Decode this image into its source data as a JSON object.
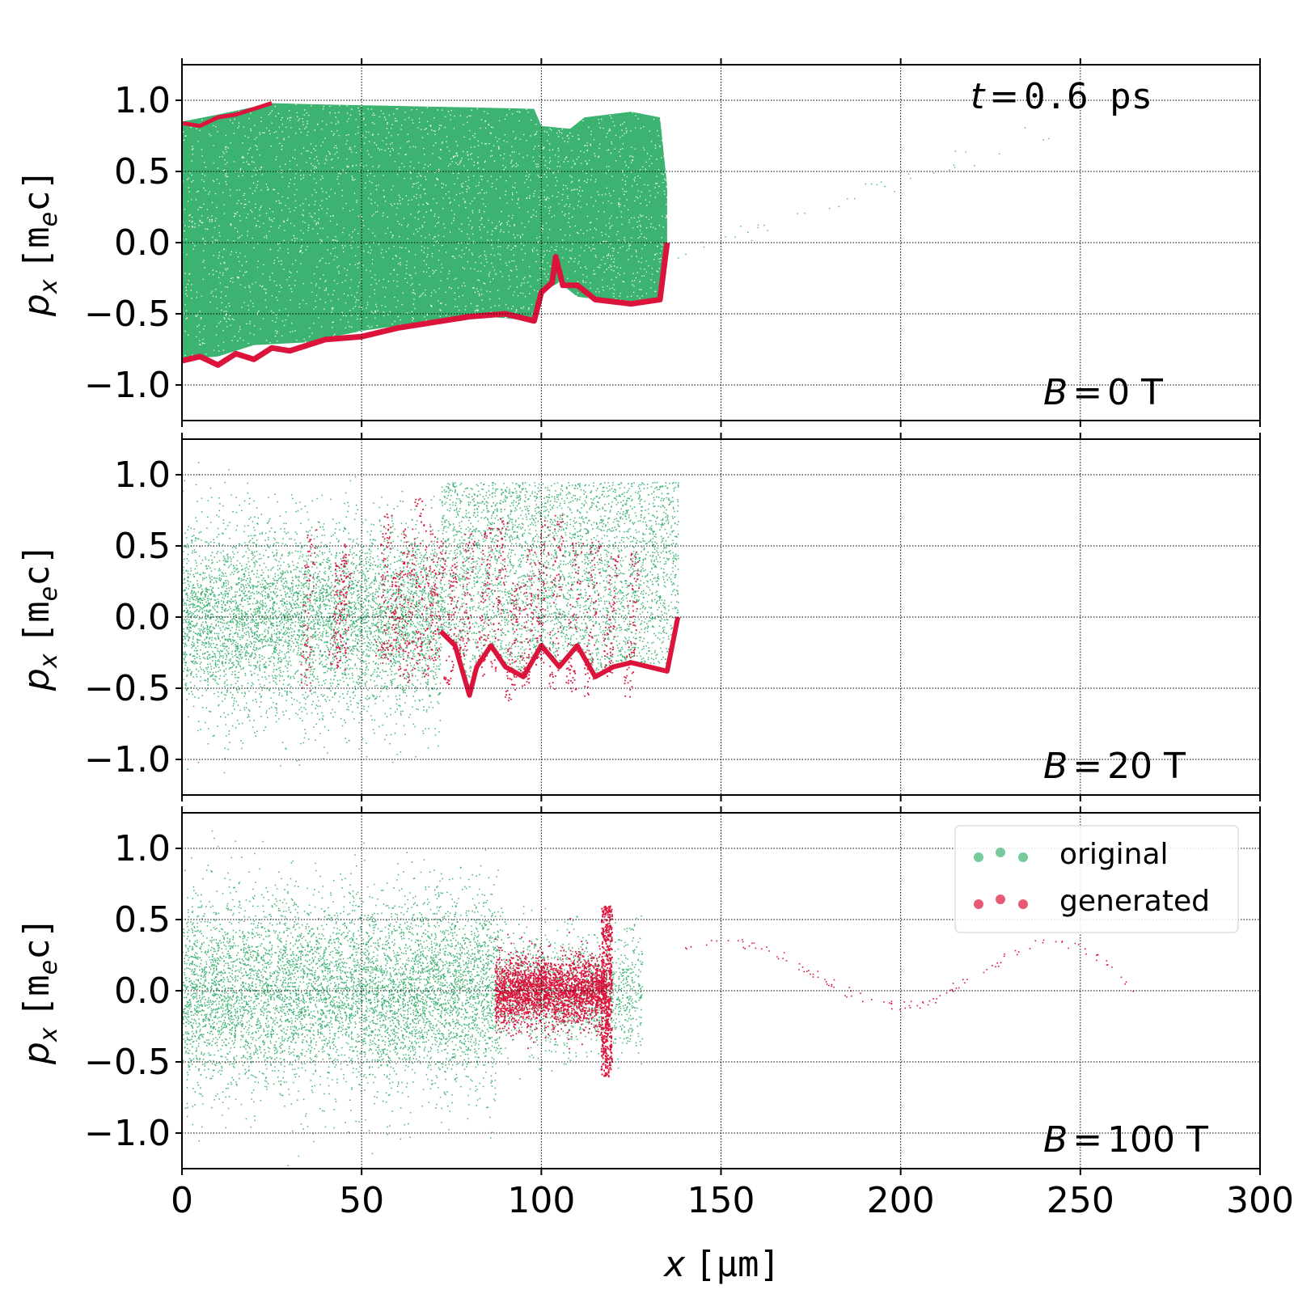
{
  "colors": {
    "original": "#3cb371",
    "generated": "#dc143c",
    "grid": "#000000",
    "frame": "#000000"
  },
  "chart_data": [
    {
      "type": "scatter",
      "panel": "top",
      "annotation_time": "t = 0.6 ps",
      "annotation_field": "B = 0 T",
      "xlim": [
        0,
        300
      ],
      "ylim": [
        -1.25,
        1.25
      ],
      "yticks": [
        1.0,
        0.5,
        0.0,
        -0.5,
        -1.0
      ],
      "ylabel": "p_x [m_e c]",
      "series": [
        {
          "name": "original",
          "description_band": "dense distribution",
          "upper": [
            [
              0,
              0.85
            ],
            [
              10,
              0.9
            ],
            [
              25,
              0.98
            ],
            [
              40,
              0.97
            ],
            [
              60,
              0.96
            ],
            [
              80,
              0.95
            ],
            [
              98,
              0.94
            ],
            [
              100,
              0.82
            ],
            [
              108,
              0.8
            ],
            [
              112,
              0.88
            ],
            [
              125,
              0.92
            ],
            [
              133,
              0.88
            ],
            [
              135,
              0.4
            ]
          ],
          "lower": [
            [
              0,
              -0.82
            ],
            [
              10,
              -0.8
            ],
            [
              20,
              -0.72
            ],
            [
              35,
              -0.7
            ],
            [
              50,
              -0.62
            ],
            [
              70,
              -0.55
            ],
            [
              85,
              -0.52
            ],
            [
              98,
              -0.55
            ],
            [
              100,
              -0.35
            ],
            [
              105,
              -0.28
            ],
            [
              110,
              -0.38
            ],
            [
              125,
              -0.43
            ],
            [
              133,
              -0.4
            ],
            [
              135,
              0.0
            ]
          ]
        },
        {
          "name": "generated",
          "edge_upper": [
            [
              0,
              0.84
            ],
            [
              5,
              0.82
            ],
            [
              10,
              0.88
            ],
            [
              15,
              0.9
            ],
            [
              20,
              0.94
            ],
            [
              25,
              0.98
            ]
          ],
          "edge_lower": [
            [
              0,
              -0.83
            ],
            [
              5,
              -0.8
            ],
            [
              10,
              -0.86
            ],
            [
              15,
              -0.78
            ],
            [
              20,
              -0.82
            ],
            [
              25,
              -0.74
            ],
            [
              30,
              -0.76
            ],
            [
              40,
              -0.68
            ],
            [
              50,
              -0.66
            ],
            [
              60,
              -0.6
            ],
            [
              70,
              -0.56
            ],
            [
              80,
              -0.52
            ],
            [
              90,
              -0.5
            ],
            [
              98,
              -0.55
            ],
            [
              100,
              -0.35
            ],
            [
              103,
              -0.28
            ],
            [
              104,
              -0.1
            ],
            [
              106,
              -0.3
            ],
            [
              110,
              -0.3
            ],
            [
              115,
              -0.4
            ],
            [
              125,
              -0.43
            ],
            [
              133,
              -0.4
            ],
            [
              135,
              0.0
            ]
          ]
        }
      ]
    },
    {
      "type": "scatter",
      "panel": "middle",
      "annotation_field": "B = 20 T",
      "xlim": [
        0,
        300
      ],
      "ylim": [
        -1.25,
        1.25
      ],
      "yticks": [
        1.0,
        0.5,
        0.0,
        -0.5,
        -1.0
      ],
      "ylabel": "p_x [m_e c]",
      "series": [
        {
          "name": "original",
          "clouds": [
            {
              "x": [
                0,
                72
              ],
              "y_center": 0.0,
              "spread": 0.55,
              "density": 5200
            },
            {
              "x": [
                72,
                138
              ],
              "y_center": 0.3,
              "spread": 0.45,
              "density": 3600
            }
          ]
        },
        {
          "name": "generated",
          "edge_lower": [
            [
              72,
              -0.1
            ],
            [
              76,
              -0.2
            ],
            [
              80,
              -0.55
            ],
            [
              82,
              -0.35
            ],
            [
              86,
              -0.2
            ],
            [
              90,
              -0.35
            ],
            [
              95,
              -0.42
            ],
            [
              100,
              -0.2
            ],
            [
              105,
              -0.35
            ],
            [
              110,
              -0.2
            ],
            [
              115,
              -0.42
            ],
            [
              120,
              -0.35
            ],
            [
              125,
              -0.32
            ],
            [
              130,
              -0.35
            ],
            [
              135,
              -0.38
            ],
            [
              138,
              0.0
            ]
          ],
          "streaks_x": [
            34,
            42,
            44,
            55,
            58,
            61,
            64,
            67,
            70,
            74,
            78,
            83,
            87,
            91,
            95,
            99,
            103,
            108,
            113,
            118,
            124
          ]
        }
      ]
    },
    {
      "type": "scatter",
      "panel": "bottom",
      "annotation_field": "B = 100 T",
      "xlim": [
        0,
        300
      ],
      "ylim": [
        -1.25,
        1.25
      ],
      "xticks": [
        0,
        50,
        100,
        150,
        200,
        250,
        300
      ],
      "yticks": [
        1.0,
        0.5,
        0.0,
        -0.5,
        -1.0
      ],
      "xlabel": "x [μm]",
      "ylabel": "p_x [m_e c]",
      "legend": {
        "placement": "top-right",
        "entries": [
          "original",
          "generated"
        ]
      },
      "series": [
        {
          "name": "original",
          "clouds": [
            {
              "x": [
                0,
                88
              ],
              "y_center": 0.0,
              "spread": 0.55,
              "density": 6400
            },
            {
              "x": [
                88,
                128
              ],
              "y_center": 0.0,
              "spread": 0.35,
              "density": 1400
            }
          ]
        },
        {
          "name": "generated",
          "clouds": [
            {
              "x": [
                87,
                118
              ],
              "y_center": 0.0,
              "spread": 0.22,
              "density": 2600
            }
          ],
          "spike_x": 118,
          "spike_range": [
            -0.6,
            0.6
          ],
          "tail": [
            [
              140,
              0.3
            ],
            [
              150,
              0.37
            ],
            [
              160,
              0.33
            ],
            [
              170,
              0.2
            ],
            [
              180,
              0.05
            ],
            [
              190,
              -0.05
            ],
            [
              200,
              -0.1
            ],
            [
              210,
              -0.05
            ],
            [
              220,
              0.1
            ],
            [
              230,
              0.25
            ],
            [
              240,
              0.35
            ],
            [
              250,
              0.3
            ],
            [
              260,
              0.15
            ],
            [
              265,
              0.0
            ]
          ]
        }
      ]
    }
  ],
  "text": {
    "ylabel_p": "p",
    "ylabel_sub": "x",
    "ylabel_unit_open": "[m",
    "ylabel_unit_sub": "e",
    "ylabel_unit_close": "c]",
    "xlabel_x": "x",
    "xlabel_unit": "[μm]",
    "time_t": "t",
    "time_eq": "=",
    "time_val": "0.6 ps",
    "legend_original": "original",
    "legend_generated": "generated",
    "b_label": "B",
    "b_eq": "=",
    "b0": "0 T",
    "b20": "20 T",
    "b100": "100 T",
    "ytick_labels": [
      "1.0",
      "0.5",
      "0.0",
      "−0.5",
      "−1.0"
    ],
    "xtick_labels": [
      "0",
      "50",
      "100",
      "150",
      "200",
      "250",
      "300"
    ]
  }
}
